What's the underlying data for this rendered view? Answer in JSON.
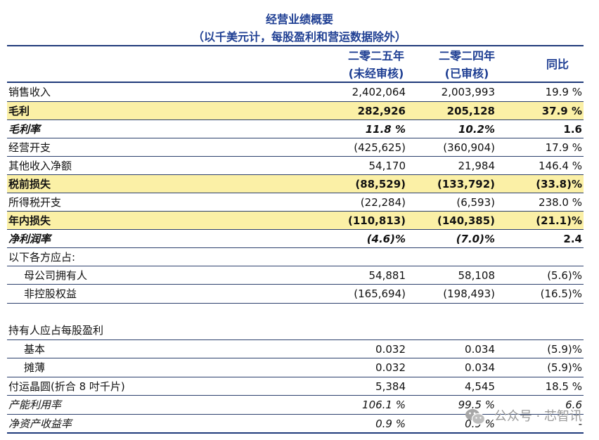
{
  "title": "经营业绩概要",
  "subtitle": "（以千美元计，每股盈利和营运数据除外）",
  "columns": {
    "c1_line1": "二零二五年",
    "c1_line2": "(未经审核)",
    "c2_line1": "二零二四年",
    "c2_line2": "(已审核)",
    "c3": "同比"
  },
  "rows": [
    {
      "label": "销售收入",
      "c1": "2,402,064",
      "c2": "2,003,993",
      "c3": "19.9 %"
    },
    {
      "label": "毛利",
      "c1": "282,926",
      "c2": "205,128",
      "c3": "37.9 %"
    },
    {
      "label": "毛利率",
      "c1": "11.8 %",
      "c2": "10.2%",
      "c3": "1.6"
    },
    {
      "label": "经营开支",
      "c1": "(425,625)",
      "c2": "(360,904)",
      "c3": "17.9 %"
    },
    {
      "label": "其他收入净额",
      "c1": "54,170",
      "c2": "21,984",
      "c3": "146.4 %"
    },
    {
      "label": "税前损失",
      "c1": "(88,529)",
      "c2": "(133,792)",
      "c3": "(33.8)%"
    },
    {
      "label": "所得税开支",
      "c1": "(22,284)",
      "c2": "(6,593)",
      "c3": "238.0 %"
    },
    {
      "label": "年内损失",
      "c1": "(110,813)",
      "c2": "(140,385)",
      "c3": "(21.1)%"
    },
    {
      "label": "净利润率",
      "c1": "(4.6)%",
      "c2": "(7.0)%",
      "c3": "2.4"
    },
    {
      "label": "以下各方应占:",
      "c1": "",
      "c2": "",
      "c3": ""
    },
    {
      "label": "母公司拥有人",
      "c1": "54,881",
      "c2": "58,108",
      "c3": "(5.6)%"
    },
    {
      "label": "非控股权益",
      "c1": "(165,694)",
      "c2": "(198,493)",
      "c3": "(16.5)%"
    },
    {
      "label": "持有人应占每股盈利",
      "c1": "",
      "c2": "",
      "c3": ""
    },
    {
      "label": "基本",
      "c1": "0.032",
      "c2": "0.034",
      "c3": "(5.9)%"
    },
    {
      "label": "摊薄",
      "c1": "0.032",
      "c2": "0.034",
      "c3": "(5.9)%"
    },
    {
      "label": "付运晶圆(折合 8 吋千片)",
      "c1": "5,384",
      "c2": "4,545",
      "c3": "18.5 %"
    },
    {
      "label": "产能利用率",
      "c1": "106.1 %",
      "c2": "99.5 %",
      "c3": "6.6"
    },
    {
      "label": "净资产收益率",
      "c1": "0.9 %",
      "c2": "0.9 %",
      "c3": "-"
    }
  ],
  "watermark": "公众号 · 芯智讯",
  "watermark_icon": "wechat-icon",
  "highlight_color": "#fbf0a6",
  "title_color": "#1f3f93"
}
